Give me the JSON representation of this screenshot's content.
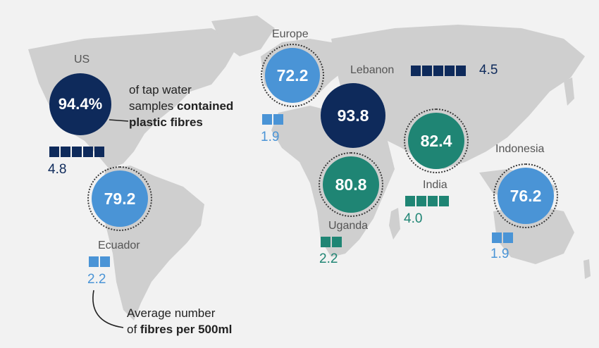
{
  "colors": {
    "navy": "#0e2a5b",
    "blue": "#4a94d6",
    "green": "#1f8574",
    "ocean": "#f2f2f2",
    "land": "#cfcfcf"
  },
  "headline_note": {
    "part1": "of tap water",
    "part2_plain": "samples ",
    "part2_bold": "contained",
    "part3": "plastic fibres"
  },
  "fibres_note": {
    "line1": "Average number",
    "line2_plain": "of ",
    "line2_bold": "fibres per 500ml"
  },
  "regions": [
    {
      "name": "US",
      "percent": "94.4%",
      "fibres": "4.8",
      "fibre_count": 4.8,
      "color": "#0e2a5b"
    },
    {
      "name": "Europe",
      "percent": "72.2",
      "fibres": "1.9",
      "fibre_count": 1.9,
      "color": "#4a94d6"
    },
    {
      "name": "Lebanon",
      "percent": "93.8",
      "fibres": "4.5",
      "fibre_count": 4.5,
      "color": "#0e2a5b"
    },
    {
      "name": "India",
      "percent": "82.4",
      "fibres": "4.0",
      "fibre_count": 4.0,
      "color": "#1f8574"
    },
    {
      "name": "Uganda",
      "percent": "80.8",
      "fibres": "2.2",
      "fibre_count": 2.2,
      "color": "#1f8574"
    },
    {
      "name": "Indonesia",
      "percent": "76.2",
      "fibres": "1.9",
      "fibre_count": 1.9,
      "color": "#4a94d6"
    },
    {
      "name": "Ecuador",
      "percent": "79.2",
      "fibres": "2.2",
      "fibre_count": 2.2,
      "color": "#4a94d6"
    }
  ]
}
